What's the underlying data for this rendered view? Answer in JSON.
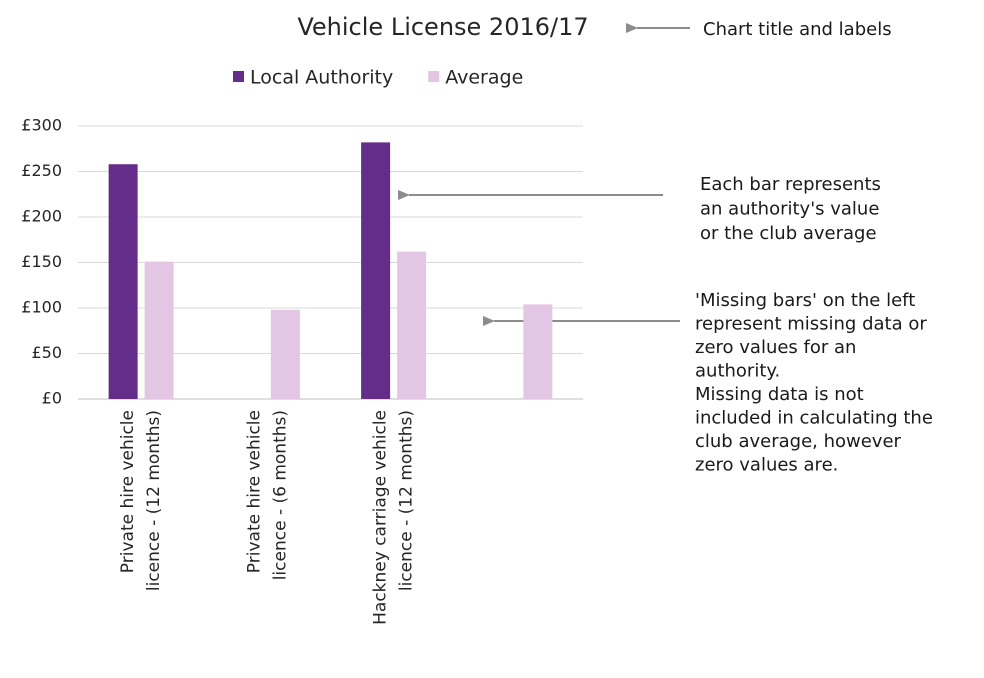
{
  "chart_data": {
    "type": "bar",
    "title": "Vehicle License 2016/17",
    "categories": [
      [
        "Private hire vehicle",
        "licence - (12 months)"
      ],
      [
        "Private hire vehicle",
        "licence - (6 months)"
      ],
      [
        "Hackney carriage vehicle",
        "licence - (12 months)"
      ],
      null
    ],
    "series": [
      {
        "name": "Local Authority",
        "color": "#652d8a",
        "values": [
          258,
          null,
          282,
          null
        ]
      },
      {
        "name": "Average",
        "color": "#e3c6e3",
        "values": [
          151,
          98,
          162,
          104
        ]
      }
    ],
    "ylim": [
      0,
      300
    ],
    "yticks": [
      {
        "value": 0,
        "label": "£0"
      },
      {
        "value": 50,
        "label": "£50"
      },
      {
        "value": 100,
        "label": "£100"
      },
      {
        "value": 150,
        "label": "£150"
      },
      {
        "value": 200,
        "label": "£200"
      },
      {
        "value": 250,
        "label": "£250"
      },
      {
        "value": 300,
        "label": "£300"
      }
    ],
    "grid": true,
    "legend": "top",
    "annotations": [
      [
        "Chart title and labels"
      ],
      [
        "Each bar represents",
        "an authority's value",
        "or the club average"
      ],
      [
        "'Missing bars' on the left",
        "represent missing data or",
        "zero values for an",
        "authority.",
        "Missing data is not",
        "included in calculating the",
        "club average, however",
        "zero values are."
      ]
    ]
  }
}
